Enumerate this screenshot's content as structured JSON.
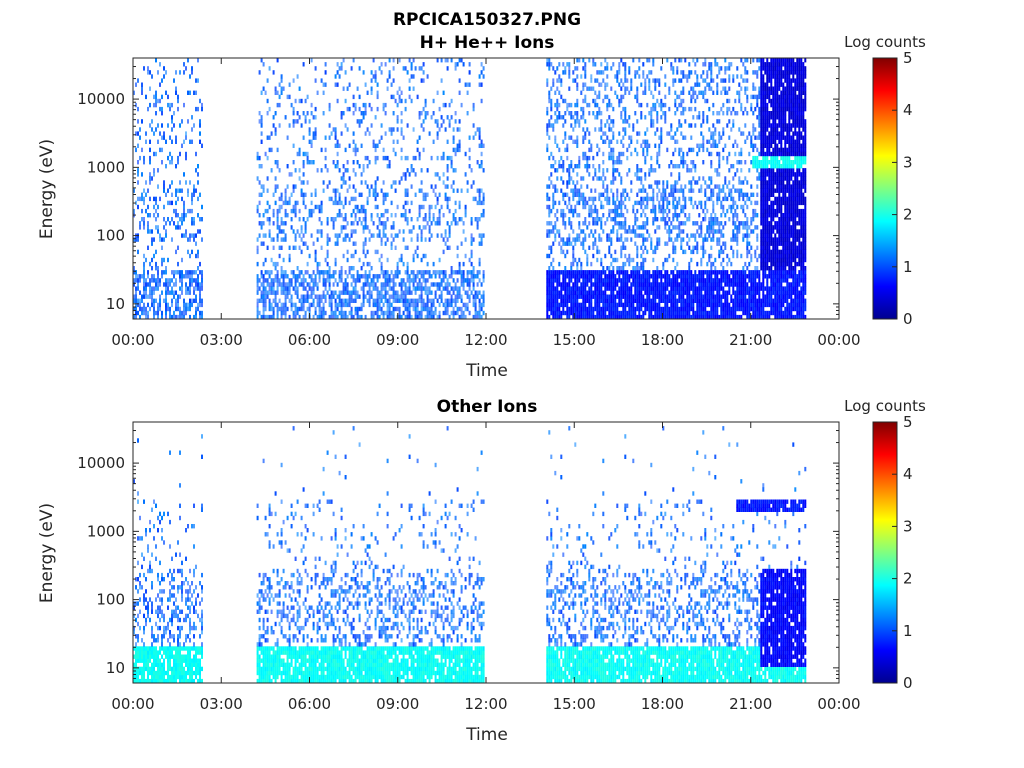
{
  "figure": {
    "title": "RPCICA150327.PNG"
  },
  "colormap": [
    "#00008f",
    "#0000ff",
    "#0080ff",
    "#00ffff",
    "#80ff80",
    "#ffff00",
    "#ff8000",
    "#ff0000",
    "#800000"
  ],
  "chart_data": [
    {
      "type": "heatmap",
      "title": "H+ He++ Ions",
      "xlabel": "Time",
      "ylabel": "Energy (eV)",
      "x_ticks": [
        "00:00",
        "03:00",
        "06:00",
        "09:00",
        "12:00",
        "15:00",
        "18:00",
        "21:00",
        "00:00"
      ],
      "xlim_hours": [
        0,
        24
      ],
      "y_ticks": [
        "10",
        "100",
        "1000",
        "10000"
      ],
      "y_scale": "log",
      "ylim": [
        6,
        40000
      ],
      "colorbar": {
        "label": "Log counts",
        "ticks": [
          "0",
          "1",
          "2",
          "3",
          "4",
          "5"
        ],
        "range": [
          0,
          5
        ]
      },
      "data_intervals_hours": [
        [
          0.0,
          2.35
        ],
        [
          4.2,
          11.95
        ],
        [
          14.05,
          22.85
        ]
      ],
      "features": [
        {
          "description": "dense high-count region",
          "time_hours": [
            21.3,
            22.85
          ],
          "energy_ev": [
            6,
            40000
          ],
          "log_counts": 0.3
        },
        {
          "description": "low-energy band",
          "time_hours": [
            14.05,
            22.85
          ],
          "energy_ev": [
            6,
            30
          ],
          "log_counts": 0.6
        },
        {
          "description": "band near 1000 eV",
          "time_hours": [
            21.0,
            22.85
          ],
          "energy_ev": [
            1000,
            1500
          ],
          "log_counts": 1.8
        }
      ]
    },
    {
      "type": "heatmap",
      "title": "Other Ions",
      "xlabel": "Time",
      "ylabel": "Energy (eV)",
      "x_ticks": [
        "00:00",
        "03:00",
        "06:00",
        "09:00",
        "12:00",
        "15:00",
        "18:00",
        "21:00",
        "00:00"
      ],
      "xlim_hours": [
        0,
        24
      ],
      "y_ticks": [
        "10",
        "100",
        "1000",
        "10000"
      ],
      "y_scale": "log",
      "ylim": [
        6,
        40000
      ],
      "colorbar": {
        "label": "Log counts",
        "ticks": [
          "0",
          "1",
          "2",
          "3",
          "4",
          "5"
        ],
        "range": [
          0,
          5
        ]
      },
      "data_intervals_hours": [
        [
          0.0,
          2.35
        ],
        [
          4.2,
          11.95
        ],
        [
          14.05,
          22.85
        ]
      ],
      "features": [
        {
          "description": "low-energy band",
          "time_hours": [
            0.0,
            22.85
          ],
          "energy_ev": [
            6,
            20
          ],
          "log_counts": 1.8
        },
        {
          "description": "dense region",
          "time_hours": [
            21.3,
            22.85
          ],
          "energy_ev": [
            10,
            300
          ],
          "log_counts": 0.5
        },
        {
          "description": "band near 2500 eV",
          "time_hours": [
            20.5,
            22.85
          ],
          "energy_ev": [
            2000,
            3000
          ],
          "log_counts": 0.6
        }
      ]
    }
  ]
}
